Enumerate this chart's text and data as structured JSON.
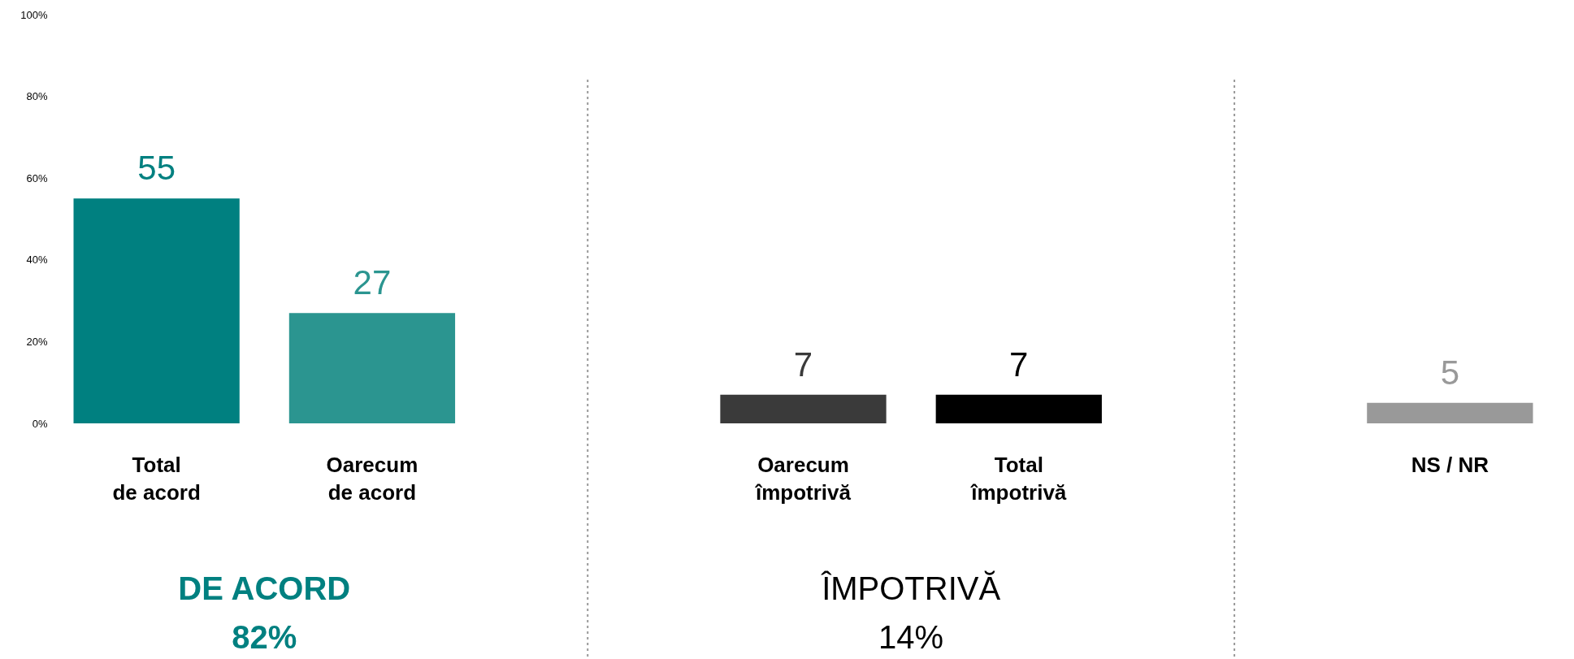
{
  "chart_data": {
    "type": "bar",
    "categories": [
      "Total\nde acord",
      "Oarecum\nde acord",
      null,
      "Oarecum\nîmpotrivă",
      "Total\nîmpotrivă",
      null,
      "NS / NR"
    ],
    "values": [
      55,
      27,
      null,
      7,
      7,
      null,
      5
    ],
    "colors": [
      "#008080",
      "#2b9590",
      null,
      "#3a3a3a",
      "#000000",
      null,
      "#999999"
    ],
    "ylim": [
      0,
      100
    ],
    "yticks": [
      {
        "value": 0,
        "label": "0%"
      },
      {
        "value": 20,
        "label": "20%"
      },
      {
        "value": 40,
        "label": "40%"
      },
      {
        "value": 60,
        "label": "60%"
      },
      {
        "value": 80,
        "label": "80%"
      },
      {
        "value": 100,
        "label": "100%"
      }
    ],
    "data_labels": true,
    "annotations": [
      "DE ACORD",
      "82%",
      "ÎMPOTRIVĂ",
      "14%"
    ]
  }
}
